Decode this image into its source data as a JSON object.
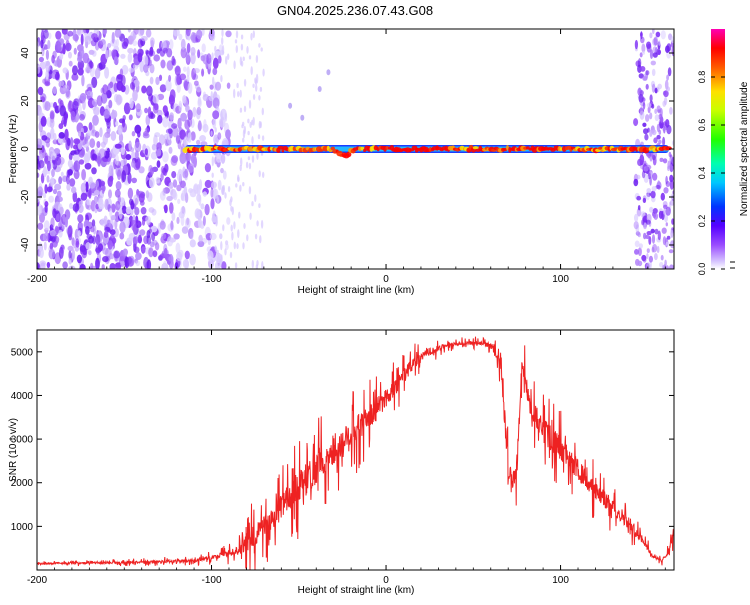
{
  "page": {
    "title": "GN04.2025.236.07.43.G08"
  },
  "chart_data": [
    {
      "type": "heatmap",
      "name": "spectrogram",
      "xlabel": "Height of straight line (km)",
      "ylabel": "Frequency (Hz)",
      "xlim": [
        -200,
        165
      ],
      "ylim": [
        -50,
        50
      ],
      "x_ticks": [
        -200,
        -100,
        0,
        100
      ],
      "y_ticks": [
        -40,
        -20,
        0,
        20,
        40
      ],
      "colorbar": {
        "label": "Normalized spectral amplitude",
        "range": [
          0,
          1
        ],
        "ticks": [
          "0.0",
          "0.2",
          "0.4",
          "0.6",
          "0.8"
        ]
      },
      "tone_line": {
        "frequency_hz": 0,
        "x_range": [
          -115,
          162
        ],
        "dip": {
          "x": -24,
          "frequency_hz": -3
        }
      },
      "noise_regions": [
        [
          -200,
          -80
        ],
        [
          145,
          165
        ]
      ]
    },
    {
      "type": "line",
      "name": "snr",
      "xlabel": "Height of straight line (km)",
      "ylabel": "SNR (10 * v/v)",
      "xlim": [
        -200,
        165
      ],
      "ylim": [
        0,
        5500
      ],
      "x_ticks": [
        -200,
        -100,
        0,
        100
      ],
      "y_ticks": [
        1000,
        2000,
        3000,
        4000,
        5000
      ],
      "series": [
        {
          "name": "SNR",
          "color": "#ee2222",
          "envelope_x": [
            -200,
            -150,
            -110,
            -95,
            -85,
            -78,
            -72,
            -65,
            -55,
            -45,
            -35,
            -25,
            -15,
            -5,
            5,
            15,
            25,
            35,
            45,
            55,
            62,
            66,
            68,
            70,
            72,
            75,
            78,
            82,
            90,
            100,
            110,
            120,
            130,
            140,
            148,
            152,
            158,
            162,
            165
          ],
          "envelope_y": [
            150,
            170,
            220,
            320,
            450,
            700,
            900,
            1200,
            1700,
            2100,
            2600,
            2900,
            3300,
            3700,
            4200,
            4700,
            5000,
            5150,
            5200,
            5200,
            5100,
            4600,
            3500,
            2300,
            2000,
            2400,
            4800,
            3800,
            3200,
            2800,
            2300,
            1800,
            1450,
            1050,
            650,
            350,
            200,
            450,
            900
          ],
          "spike_amplitude_y": [
            60,
            80,
            120,
            180,
            350,
            800,
            900,
            900,
            1100,
            1300,
            1300,
            1200,
            1000,
            900,
            700,
            500,
            300,
            150,
            150,
            150,
            250,
            600,
            900,
            1000,
            900,
            900,
            700,
            900,
            1000,
            900,
            800,
            700,
            600,
            500,
            300,
            150,
            100,
            200,
            400
          ]
        }
      ]
    }
  ]
}
